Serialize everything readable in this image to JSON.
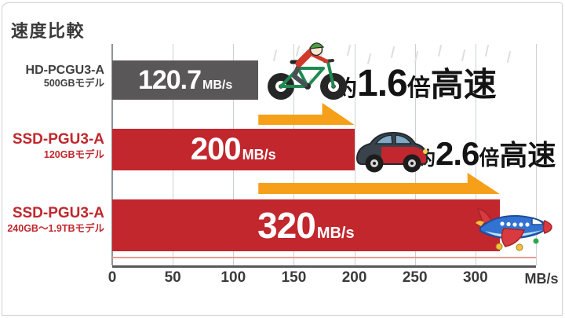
{
  "title": "速度比較",
  "chart_data": {
    "type": "bar",
    "orientation": "horizontal",
    "title": "速度比較",
    "categories": [
      "HD-PCGU3-A 500GBモデル",
      "SSD-PGU3-A 120GBモデル",
      "SSD-PGU3-A 240GB～1.9TBモデル"
    ],
    "values": [
      120.7,
      200,
      320
    ],
    "value_labels": [
      "120.7MB/s",
      "200MB/s",
      "320MB/s"
    ],
    "unit": "MB/s",
    "xlim": [
      0,
      350
    ],
    "x_ticks": [
      0,
      50,
      100,
      150,
      200,
      250,
      300
    ],
    "axis_unit_label": "MB/s",
    "grid": true,
    "legend": false,
    "bar_colors": [
      "#595757",
      "#c1272d",
      "#c1272d"
    ],
    "annotations": [
      {
        "text": "約1.6倍高速",
        "icon": "bicycle"
      },
      {
        "text": "約2.6倍高速",
        "icon": "car"
      },
      {
        "text": "",
        "icon": "airplane"
      }
    ]
  },
  "rows": [
    {
      "model": "HD-PCGU3-A",
      "variant": "500GBモデル",
      "value": "120.7",
      "unit": "MB/s",
      "icon": "bicycle"
    },
    {
      "model": "SSD-PGU3-A",
      "variant": "120GBモデル",
      "value": "200",
      "unit": "MB/s",
      "icon": "car"
    },
    {
      "model": "SSD-PGU3-A",
      "variant": "240GB～1.9TBモデル",
      "value": "320",
      "unit": "MB/s",
      "icon": "airplane"
    }
  ],
  "speedups": [
    {
      "prefix": "約",
      "factor": "1.6",
      "unit_word": "倍",
      "suffix": "高速"
    },
    {
      "prefix": "約",
      "factor": "2.6",
      "unit_word": "倍",
      "suffix": "高速"
    }
  ],
  "axis_unit_label": "MB/s",
  "colors": {
    "hdd_bar": "#595757",
    "ssd_bar": "#c1272d",
    "arrow": "#f6a019",
    "gridline": "#ccd1d4",
    "axis_line": "#57585a",
    "label_red": "#c1272d",
    "text_dark": "#3a3a3a"
  }
}
